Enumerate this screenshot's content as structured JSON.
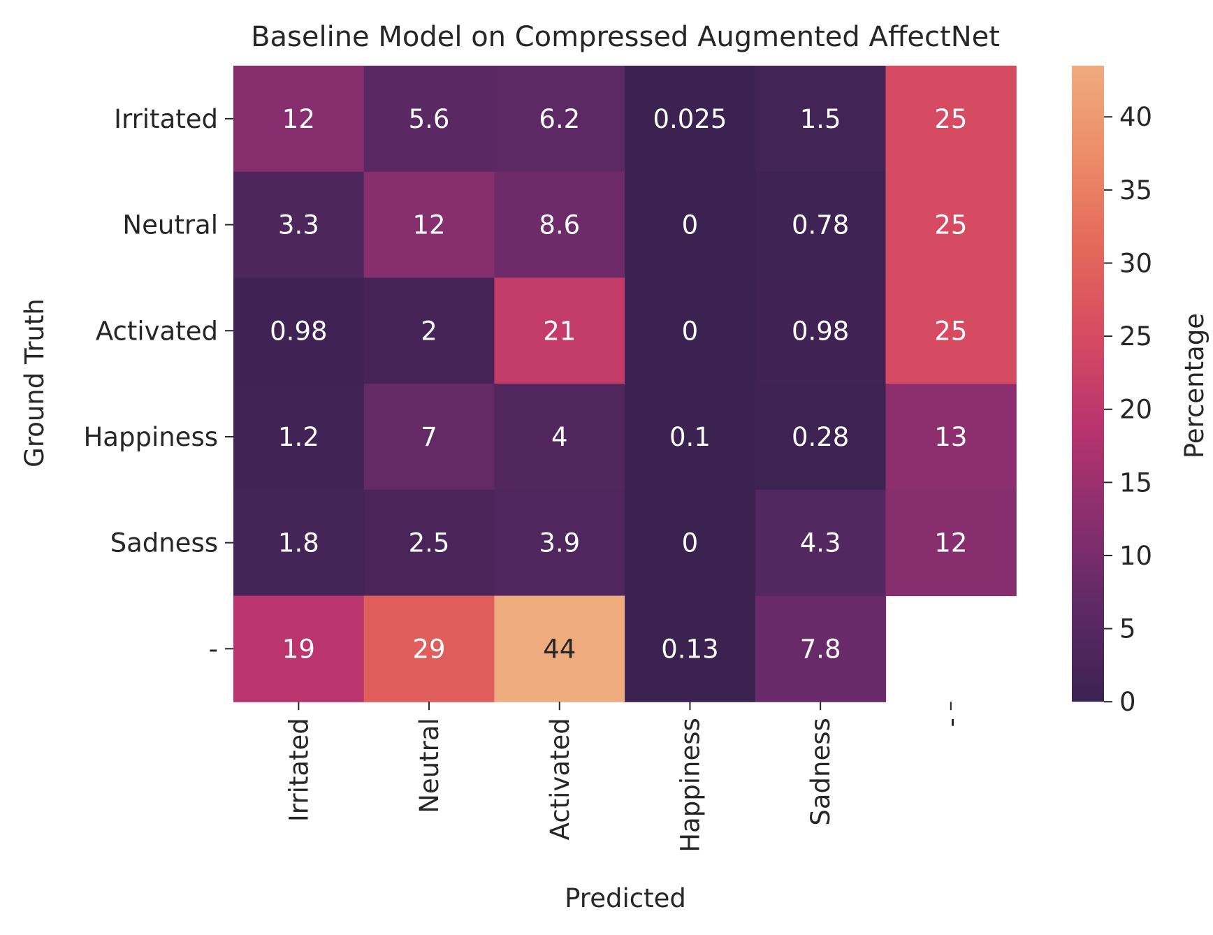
{
  "chart_data": {
    "type": "heatmap",
    "title": "Baseline Model on Compressed Augmented AffectNet",
    "xlabel": "Predicted",
    "ylabel": "Ground Truth",
    "x_categories": [
      "Irritated",
      "Neutral",
      "Activated",
      "Happiness",
      "Sadness",
      "-"
    ],
    "y_categories": [
      "Irritated",
      "Neutral",
      "Activated",
      "Happiness",
      "Sadness",
      "-"
    ],
    "values": [
      [
        "12",
        "5.6",
        "6.2",
        "0.025",
        "1.5",
        "25"
      ],
      [
        "3.3",
        "12",
        "8.6",
        "0",
        "0.78",
        "25"
      ],
      [
        "0.98",
        "2",
        "21",
        "0",
        "0.98",
        "25"
      ],
      [
        "1.2",
        "7",
        "4",
        "0.1",
        "0.28",
        "13"
      ],
      [
        "1.8",
        "2.5",
        "3.9",
        "0",
        "4.3",
        "12"
      ],
      [
        "19",
        "29",
        "44",
        "0.13",
        "7.8",
        null
      ]
    ],
    "colorbar": {
      "label": "Percentage",
      "range": [
        0,
        43.5
      ],
      "ticks": [
        0,
        5,
        10,
        15,
        20,
        25,
        30,
        35,
        40
      ],
      "colormap": "flare_r",
      "colormap_stops": [
        "#3b2251",
        "#5d2965",
        "#892e6f",
        "#b8336e",
        "#d64a61",
        "#e4685a",
        "#ed8c68",
        "#eeab7e"
      ]
    },
    "annotation_colors": {
      "light": "#ffffff",
      "dark": "#262626"
    },
    "grid": false
  }
}
